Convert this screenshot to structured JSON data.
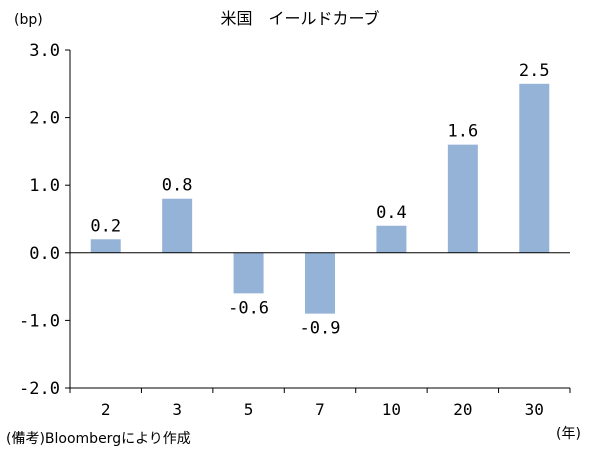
{
  "chart_data": {
    "type": "bar",
    "title": "米国　イールドカーブ",
    "ylabel": "(bp)",
    "xlabel": "(年)",
    "categories": [
      "2",
      "3",
      "5",
      "7",
      "10",
      "20",
      "30"
    ],
    "values": [
      0.2,
      0.8,
      -0.6,
      -0.9,
      0.4,
      1.6,
      2.5
    ],
    "value_labels": [
      "0.2",
      "0.8",
      "-0.6",
      "-0.9",
      "0.4",
      "1.6",
      "2.5"
    ],
    "ylim": [
      -2.0,
      3.0
    ],
    "yticks": [
      "3.0",
      "2.0",
      "1.0",
      "0.0",
      "-1.0",
      "-2.0"
    ],
    "ytick_values": [
      3.0,
      2.0,
      1.0,
      0.0,
      -1.0,
      -2.0
    ],
    "bar_color": "#95b3d7",
    "grid": false,
    "legend": "none"
  },
  "source_note": "(備考)Bloombergにより作成"
}
